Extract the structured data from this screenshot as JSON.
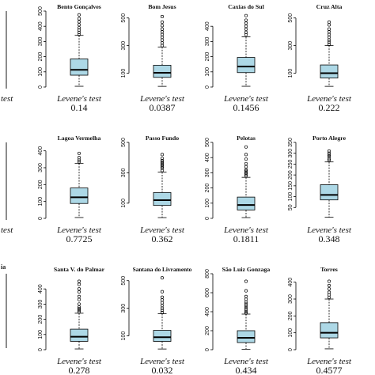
{
  "figure": {
    "test_label": "Levene's test"
  },
  "colors": {
    "box_fill": "#add8e6",
    "stroke": "#000000",
    "text": "#111111"
  },
  "chart_data": [
    {
      "type": "box",
      "title": "Bento Gonçalves",
      "ylim": [
        0,
        500
      ],
      "yticks": [
        0,
        100,
        200,
        300,
        400,
        500
      ],
      "box": {
        "min": 5,
        "q1": 78,
        "median": 113,
        "q3": 185,
        "max": 340
      },
      "outliers": [
        345,
        360,
        375,
        390,
        410,
        430,
        450,
        475
      ],
      "pvalue": "0.14"
    },
    {
      "type": "box",
      "title": "Bom Jesus",
      "ylim": [
        0,
        550
      ],
      "yticks": [
        100,
        300,
        500
      ],
      "box": {
        "min": 5,
        "q1": 70,
        "median": 103,
        "q3": 158,
        "max": 290
      },
      "outliers": [
        300,
        320,
        340,
        360,
        380,
        400,
        420,
        445,
        470,
        510
      ],
      "pvalue": "0.0387"
    },
    {
      "type": "box",
      "title": "Caxias do Sul",
      "ylim": [
        0,
        500
      ],
      "yticks": [
        0,
        100,
        200,
        300,
        400
      ],
      "box": {
        "min": 5,
        "q1": 95,
        "median": 135,
        "q3": 195,
        "max": 330
      },
      "outliers": [
        345,
        360,
        380,
        400,
        420,
        440,
        470
      ],
      "pvalue": "0.1456"
    },
    {
      "type": "box",
      "title": "Cruz Alta",
      "ylim": [
        0,
        550
      ],
      "yticks": [
        100,
        300,
        500
      ],
      "box": {
        "min": 5,
        "q1": 65,
        "median": 100,
        "q3": 160,
        "max": 300
      },
      "outliers": [
        310,
        325,
        340,
        360,
        380,
        400,
        420,
        450,
        470
      ],
      "pvalue": "0.222"
    },
    {
      "type": "box",
      "title": "Lagoa Vermelha",
      "ylim": [
        0,
        450
      ],
      "yticks": [
        0,
        100,
        200,
        300,
        400
      ],
      "box": {
        "min": 5,
        "q1": 88,
        "median": 125,
        "q3": 180,
        "max": 325
      },
      "outliers": [
        335,
        345,
        360,
        385
      ],
      "pvalue": "0.7725"
    },
    {
      "type": "box",
      "title": "Passo Fundo",
      "ylim": [
        0,
        500
      ],
      "yticks": [
        100,
        300,
        500
      ],
      "box": {
        "min": 5,
        "q1": 85,
        "median": 120,
        "q3": 170,
        "max": 305
      },
      "outliers": [
        315,
        330,
        340,
        350,
        360,
        370,
        380,
        395,
        420
      ],
      "pvalue": "0.362"
    },
    {
      "type": "box",
      "title": "Pelotas",
      "ylim": [
        0,
        500
      ],
      "yticks": [
        0,
        100,
        200,
        300,
        400,
        500
      ],
      "box": {
        "min": 5,
        "q1": 55,
        "median": 88,
        "q3": 140,
        "max": 270
      },
      "outliers": [
        280,
        290,
        300,
        310,
        320,
        340,
        360,
        390,
        420,
        470
      ],
      "pvalue": "0.1811"
    },
    {
      "type": "box",
      "title": "Porto Alegre",
      "ylim": [
        0,
        350
      ],
      "yticks": [
        50,
        100,
        150,
        200,
        250,
        300,
        350
      ],
      "box": {
        "min": 5,
        "q1": 85,
        "median": 108,
        "q3": 155,
        "max": 260
      },
      "outliers": [
        268,
        275,
        285,
        292,
        300,
        310
      ],
      "pvalue": "0.348"
    },
    {
      "type": "box",
      "title": "Santa V. do Palmar",
      "ylim": [
        0,
        500
      ],
      "yticks": [
        0,
        100,
        200,
        300,
        400
      ],
      "box": {
        "min": 5,
        "q1": 55,
        "median": 85,
        "q3": 135,
        "max": 240
      },
      "outliers": [
        250,
        260,
        270,
        280,
        300,
        330,
        350,
        380,
        400,
        430,
        450
      ],
      "pvalue": "0.278"
    },
    {
      "type": "box",
      "title": "Santana do Livramento",
      "ylim": [
        0,
        550
      ],
      "yticks": [
        100,
        300,
        500
      ],
      "box": {
        "min": 5,
        "q1": 60,
        "median": 90,
        "q3": 140,
        "max": 260
      },
      "outliers": [
        270,
        285,
        300,
        320,
        340,
        360,
        380,
        420,
        520
      ],
      "pvalue": "0.032"
    },
    {
      "type": "box",
      "title": "São Luiz Gonzaga",
      "ylim": [
        0,
        800
      ],
      "yticks": [
        0,
        200,
        400,
        600,
        800
      ],
      "box": {
        "min": 5,
        "q1": 75,
        "median": 125,
        "q3": 200,
        "max": 375
      },
      "outliers": [
        385,
        400,
        420,
        440,
        460,
        480,
        500,
        530,
        560,
        620,
        720
      ],
      "pvalue": "0.434"
    },
    {
      "type": "box",
      "title": "Torres",
      "ylim": [
        0,
        450
      ],
      "yticks": [
        0,
        100,
        200,
        300,
        400
      ],
      "box": {
        "min": 5,
        "q1": 70,
        "median": 100,
        "q3": 160,
        "max": 300
      },
      "outliers": [
        310,
        325,
        340,
        360,
        380,
        405
      ],
      "pvalue": "0.4577"
    }
  ]
}
